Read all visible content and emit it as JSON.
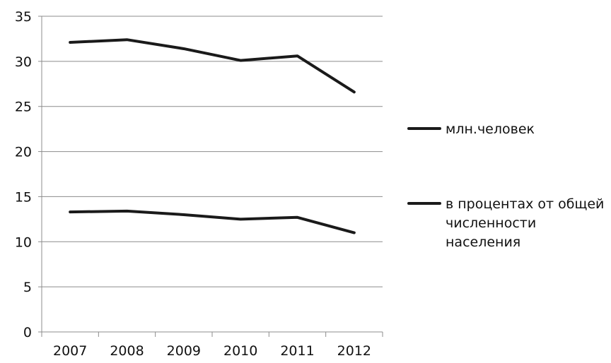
{
  "chart_data": {
    "type": "line",
    "categories": [
      "2007",
      "2008",
      "2009",
      "2010",
      "2011",
      "2012"
    ],
    "ylim": [
      0,
      35
    ],
    "yticks": [
      0,
      5,
      10,
      15,
      20,
      25,
      30,
      35
    ],
    "grid": true,
    "legend_position": "right",
    "series": [
      {
        "name": "млн.человек",
        "values": [
          32.1,
          32.4,
          31.4,
          30.1,
          30.6,
          26.6
        ],
        "color": "#1a1a1a"
      },
      {
        "name": "в процентах от общей численности населения",
        "name_lines": [
          "в процентах от общей",
          "численности",
          "населения"
        ],
        "values": [
          13.3,
          13.4,
          13.0,
          12.5,
          12.7,
          11.0
        ],
        "color": "#1a1a1a"
      }
    ]
  }
}
